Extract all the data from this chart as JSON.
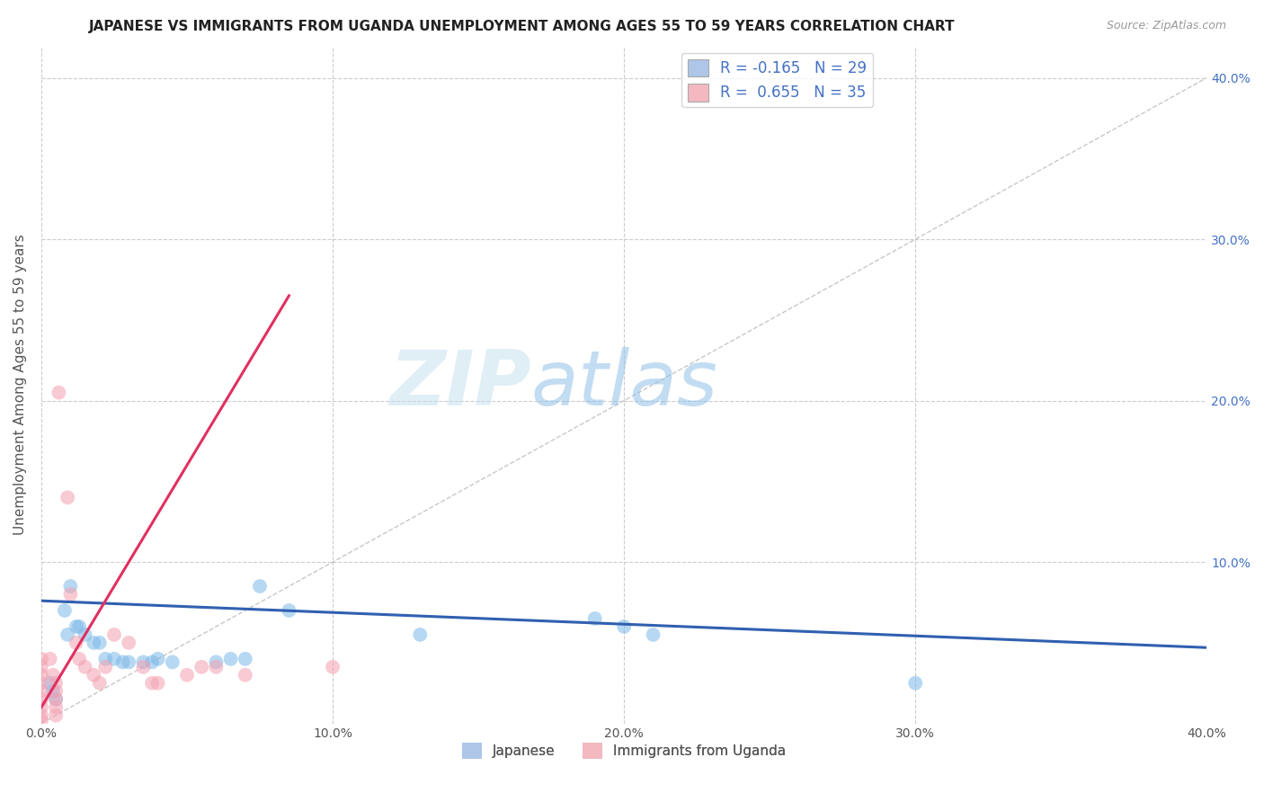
{
  "title": "JAPANESE VS IMMIGRANTS FROM UGANDA UNEMPLOYMENT AMONG AGES 55 TO 59 YEARS CORRELATION CHART",
  "source": "Source: ZipAtlas.com",
  "ylabel": "Unemployment Among Ages 55 to 59 years",
  "xlim": [
    0.0,
    0.4
  ],
  "ylim": [
    0.0,
    0.42
  ],
  "xticks": [
    0.0,
    0.1,
    0.2,
    0.3,
    0.4
  ],
  "yticks": [
    0.0,
    0.1,
    0.2,
    0.3,
    0.4
  ],
  "xtick_labels": [
    "0.0%",
    "10.0%",
    "20.0%",
    "30.0%",
    "40.0%"
  ],
  "ytick_labels_left": [
    "",
    "",
    "",
    "",
    ""
  ],
  "ytick_labels_right": [
    "",
    "10.0%",
    "20.0%",
    "30.0%",
    "40.0%"
  ],
  "legend_entries": [
    {
      "label": "R = -0.165   N = 29",
      "color": "#aec6e8"
    },
    {
      "label": "R =  0.655   N = 35",
      "color": "#f4b8c1"
    }
  ],
  "legend_bottom": [
    {
      "label": "Japanese",
      "color": "#aec6e8"
    },
    {
      "label": "Immigrants from Uganda",
      "color": "#f4b8c1"
    }
  ],
  "japanese_scatter": [
    [
      0.003,
      0.025
    ],
    [
      0.004,
      0.02
    ],
    [
      0.005,
      0.015
    ],
    [
      0.008,
      0.07
    ],
    [
      0.009,
      0.055
    ],
    [
      0.01,
      0.085
    ],
    [
      0.012,
      0.06
    ],
    [
      0.013,
      0.06
    ],
    [
      0.015,
      0.055
    ],
    [
      0.018,
      0.05
    ],
    [
      0.02,
      0.05
    ],
    [
      0.022,
      0.04
    ],
    [
      0.025,
      0.04
    ],
    [
      0.028,
      0.038
    ],
    [
      0.03,
      0.038
    ],
    [
      0.035,
      0.038
    ],
    [
      0.038,
      0.038
    ],
    [
      0.04,
      0.04
    ],
    [
      0.045,
      0.038
    ],
    [
      0.06,
      0.038
    ],
    [
      0.065,
      0.04
    ],
    [
      0.07,
      0.04
    ],
    [
      0.075,
      0.085
    ],
    [
      0.085,
      0.07
    ],
    [
      0.13,
      0.055
    ],
    [
      0.19,
      0.065
    ],
    [
      0.2,
      0.06
    ],
    [
      0.21,
      0.055
    ],
    [
      0.3,
      0.025
    ]
  ],
  "uganda_scatter": [
    [
      0.0,
      0.04
    ],
    [
      0.0,
      0.035
    ],
    [
      0.0,
      0.03
    ],
    [
      0.0,
      0.025
    ],
    [
      0.0,
      0.02
    ],
    [
      0.0,
      0.015
    ],
    [
      0.0,
      0.01
    ],
    [
      0.0,
      0.005
    ],
    [
      0.0,
      0.002
    ],
    [
      0.003,
      0.04
    ],
    [
      0.004,
      0.03
    ],
    [
      0.005,
      0.025
    ],
    [
      0.005,
      0.02
    ],
    [
      0.005,
      0.015
    ],
    [
      0.005,
      0.01
    ],
    [
      0.005,
      0.005
    ],
    [
      0.006,
      0.205
    ],
    [
      0.009,
      0.14
    ],
    [
      0.01,
      0.08
    ],
    [
      0.012,
      0.05
    ],
    [
      0.013,
      0.04
    ],
    [
      0.015,
      0.035
    ],
    [
      0.018,
      0.03
    ],
    [
      0.02,
      0.025
    ],
    [
      0.022,
      0.035
    ],
    [
      0.025,
      0.055
    ],
    [
      0.03,
      0.05
    ],
    [
      0.035,
      0.035
    ],
    [
      0.038,
      0.025
    ],
    [
      0.04,
      0.025
    ],
    [
      0.05,
      0.03
    ],
    [
      0.055,
      0.035
    ],
    [
      0.06,
      0.035
    ],
    [
      0.07,
      0.03
    ],
    [
      0.1,
      0.035
    ]
  ],
  "blue_line_x": [
    0.0,
    0.4
  ],
  "blue_line_y": [
    0.076,
    0.047
  ],
  "pink_line_x": [
    0.0,
    0.085
  ],
  "pink_line_y": [
    0.01,
    0.265
  ],
  "diagonal_line_x": [
    0.0,
    0.4
  ],
  "diagonal_line_y": [
    0.0,
    0.4
  ],
  "watermark_zip": "ZIP",
  "watermark_atlas": "atlas",
  "bg_color": "#ffffff",
  "grid_color": "#cccccc",
  "title_fontsize": 11,
  "axis_label_fontsize": 11,
  "tick_fontsize": 10,
  "scatter_alpha": 0.55,
  "scatter_size": 130,
  "japanese_color": "#7db8e8",
  "uganda_color": "#f4a0b0",
  "blue_line_color": "#3060b0",
  "pink_line_color": "#e03060",
  "diagonal_color": "#c8c8c8"
}
